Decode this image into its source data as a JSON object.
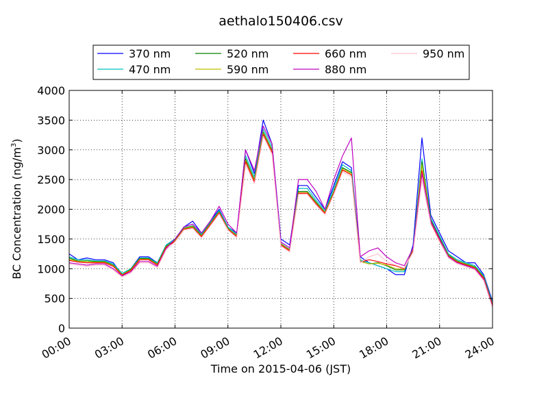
{
  "chart_data": {
    "type": "line",
    "title": "aethalo150406.csv",
    "xlabel": "Time on 2015-04-06 (JST)",
    "ylabel": "BC Concentration (ng/m",
    "ylabel_superscript": "3",
    "ylabel_close": ")",
    "xlim": [
      0,
      24
    ],
    "ylim": [
      0,
      4000
    ],
    "x_ticks": [
      {
        "value": 0,
        "label": "00:00"
      },
      {
        "value": 3,
        "label": "03:00"
      },
      {
        "value": 6,
        "label": "06:00"
      },
      {
        "value": 9,
        "label": "09:00"
      },
      {
        "value": 12,
        "label": "12:00"
      },
      {
        "value": 15,
        "label": "15:00"
      },
      {
        "value": 18,
        "label": "18:00"
      },
      {
        "value": 21,
        "label": "21:00"
      },
      {
        "value": 24,
        "label": "24:00"
      }
    ],
    "y_ticks": [
      {
        "value": 0,
        "label": "0"
      },
      {
        "value": 500,
        "label": "500"
      },
      {
        "value": 1000,
        "label": "1000"
      },
      {
        "value": 1500,
        "label": "1500"
      },
      {
        "value": 2000,
        "label": "2000"
      },
      {
        "value": 2500,
        "label": "2500"
      },
      {
        "value": 3000,
        "label": "3000"
      },
      {
        "value": 3500,
        "label": "3500"
      },
      {
        "value": 4000,
        "label": "4000"
      }
    ],
    "grid": true,
    "legend_position": "top-center",
    "x": [
      0.0,
      0.5,
      1.0,
      1.5,
      2.0,
      2.5,
      3.0,
      3.5,
      4.0,
      4.5,
      5.0,
      5.5,
      6.0,
      6.5,
      7.0,
      7.5,
      8.0,
      8.5,
      9.0,
      9.5,
      10.0,
      10.5,
      11.0,
      11.5,
      12.0,
      12.5,
      13.0,
      13.5,
      14.0,
      14.5,
      15.0,
      15.5,
      16.0,
      16.5,
      17.0,
      17.5,
      18.0,
      18.5,
      19.0,
      19.5,
      20.0,
      20.5,
      21.0,
      21.5,
      22.0,
      22.5,
      23.0,
      23.5,
      24.0
    ],
    "series": [
      {
        "name": "370 nm",
        "color": "#0000ff",
        "values": [
          1250,
          1150,
          1180,
          1150,
          1150,
          1100,
          900,
          1000,
          1200,
          1200,
          1100,
          1400,
          1500,
          1700,
          1800,
          1600,
          1800,
          2000,
          1700,
          1600,
          3000,
          2600,
          3500,
          3100,
          1500,
          1400,
          2400,
          2400,
          2200,
          2000,
          2400,
          2800,
          2700,
          1200,
          1100,
          1050,
          1000,
          900,
          900,
          1400,
          3200,
          1900,
          1600,
          1300,
          1200,
          1100,
          1100,
          900,
          450
        ]
      },
      {
        "name": "470 nm",
        "color": "#00bfbf",
        "values": [
          1200,
          1150,
          1150,
          1130,
          1130,
          1080,
          920,
          1000,
          1180,
          1180,
          1100,
          1400,
          1500,
          1700,
          1750,
          1580,
          1780,
          1980,
          1700,
          1580,
          2900,
          2550,
          3350,
          3050,
          1450,
          1350,
          2350,
          2350,
          2150,
          1980,
          2350,
          2750,
          2650,
          1150,
          1100,
          1050,
          1000,
          950,
          950,
          1350,
          2850,
          1850,
          1550,
          1250,
          1150,
          1100,
          1050,
          880,
          420
        ]
      },
      {
        "name": "520 nm",
        "color": "#008000",
        "values": [
          1180,
          1130,
          1130,
          1120,
          1120,
          1060,
          900,
          990,
          1170,
          1170,
          1080,
          1380,
          1480,
          1680,
          1720,
          1560,
          1760,
          1960,
          1680,
          1560,
          2850,
          2500,
          3300,
          3000,
          1420,
          1320,
          2300,
          2300,
          2120,
          1950,
          2300,
          2700,
          2620,
          1130,
          1080,
          1100,
          1050,
          980,
          980,
          1320,
          2800,
          1820,
          1520,
          1230,
          1130,
          1080,
          1030,
          860,
          400
        ]
      },
      {
        "name": "590 nm",
        "color": "#bfbf00",
        "values": [
          1160,
          1120,
          1120,
          1110,
          1110,
          1050,
          900,
          980,
          1160,
          1160,
          1070,
          1370,
          1470,
          1670,
          1700,
          1550,
          1750,
          1950,
          1670,
          1550,
          2820,
          2480,
          3280,
          2980,
          1410,
          1310,
          2280,
          2280,
          2100,
          1940,
          2280,
          2680,
          2600,
          1120,
          1080,
          1090,
          1060,
          1000,
          990,
          1310,
          2750,
          1800,
          1500,
          1220,
          1120,
          1070,
          1020,
          850,
          390
        ]
      },
      {
        "name": "660 nm",
        "color": "#ff0000",
        "values": [
          1140,
          1110,
          1100,
          1100,
          1100,
          1040,
          890,
          970,
          1150,
          1150,
          1060,
          1360,
          1460,
          1660,
          1690,
          1540,
          1740,
          1940,
          1660,
          1540,
          2800,
          2460,
          3260,
          2960,
          1400,
          1300,
          2270,
          2270,
          2090,
          1930,
          2270,
          2660,
          2580,
          1110,
          1150,
          1120,
          1080,
          1050,
          1000,
          1300,
          2650,
          1780,
          1480,
          1210,
          1110,
          1060,
          1010,
          840,
          380
        ]
      },
      {
        "name": "880 nm",
        "color": "#bf00bf",
        "values": [
          1100,
          1080,
          1060,
          1080,
          1080,
          1000,
          880,
          950,
          1120,
          1120,
          1040,
          1340,
          1500,
          1700,
          1750,
          1600,
          1800,
          2050,
          1750,
          1600,
          3000,
          2650,
          3400,
          3100,
          1450,
          1350,
          2500,
          2500,
          2300,
          2000,
          2500,
          2900,
          3200,
          1200,
          1300,
          1350,
          1200,
          1100,
          1050,
          1350,
          2600,
          1800,
          1500,
          1200,
          1100,
          1050,
          1000,
          820,
          360
        ]
      },
      {
        "name": "950 nm",
        "color": "#ffc0cb",
        "values": [
          1080,
          1060,
          1040,
          1060,
          1060,
          980,
          860,
          930,
          1100,
          1100,
          1020,
          1320,
          1450,
          1650,
          1680,
          1520,
          1720,
          1920,
          1650,
          1520,
          2750,
          2430,
          3230,
          2930,
          1380,
          1280,
          2250,
          2250,
          2070,
          1910,
          2250,
          2630,
          2550,
          1100,
          1200,
          1250,
          1120,
          1060,
          1010,
          1280,
          2500,
          1750,
          1450,
          1180,
          1080,
          1030,
          980,
          800,
          340
        ]
      }
    ]
  }
}
